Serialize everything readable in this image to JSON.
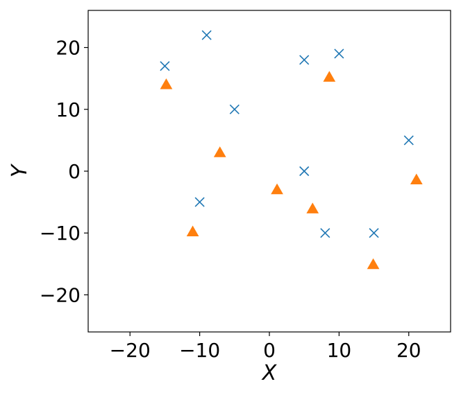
{
  "chart_data": {
    "type": "scatter",
    "title": "",
    "xlabel": "X",
    "ylabel": "Y",
    "xlim": [
      -26,
      26
    ],
    "ylim": [
      -26,
      26
    ],
    "xticks": [
      -20,
      -10,
      0,
      10,
      20
    ],
    "yticks": [
      -20,
      -10,
      0,
      10,
      20
    ],
    "xtick_labels": [
      "−20",
      "−10",
      "0",
      "10",
      "20"
    ],
    "ytick_labels": [
      "−20",
      "−10",
      "0",
      "10",
      "20"
    ],
    "grid": false,
    "legend": "none",
    "series": [
      {
        "marker": "x",
        "color": "#1f77b4",
        "points": [
          {
            "x": -15,
            "y": 17
          },
          {
            "x": -9,
            "y": 22
          },
          {
            "x": -5,
            "y": 10
          },
          {
            "x": -10,
            "y": -5
          },
          {
            "x": 5,
            "y": 18
          },
          {
            "x": 10,
            "y": 19
          },
          {
            "x": 5,
            "y": 0
          },
          {
            "x": 8,
            "y": -10
          },
          {
            "x": 15,
            "y": -10
          },
          {
            "x": 20,
            "y": 5
          }
        ]
      },
      {
        "marker": "triangle",
        "color": "#ff7f0e",
        "points": [
          {
            "x": -14.8,
            "y": 14
          },
          {
            "x": -7.1,
            "y": 3
          },
          {
            "x": -11,
            "y": -9.8
          },
          {
            "x": 1.1,
            "y": -3
          },
          {
            "x": 8.6,
            "y": 15.2
          },
          {
            "x": 6.2,
            "y": -6.1
          },
          {
            "x": 14.9,
            "y": -15.1
          },
          {
            "x": 21.1,
            "y": -1.4
          }
        ]
      }
    ]
  }
}
